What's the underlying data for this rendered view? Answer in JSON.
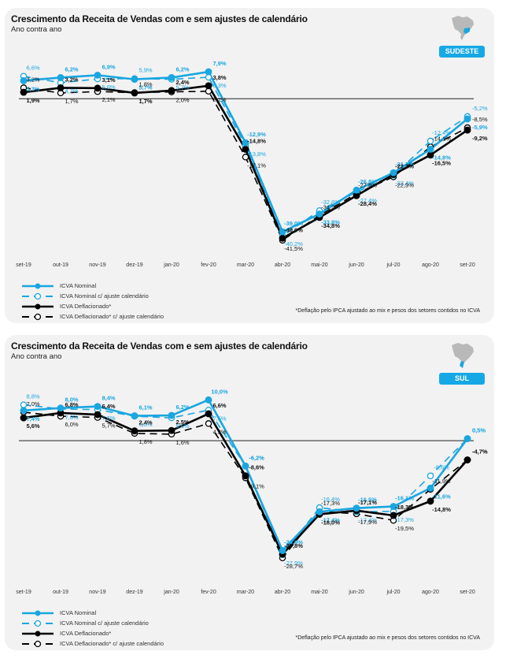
{
  "legend": {
    "items": [
      {
        "label": "ICVA Nominal",
        "color": "#1aa6e0",
        "style": "solid",
        "marker": "filled"
      },
      {
        "label": "ICVA Nominal c/ ajuste calendário",
        "color": "#1aa6e0",
        "style": "dashed",
        "marker": "open"
      },
      {
        "label": "ICVA Deflacionado*",
        "color": "#000000",
        "style": "solid",
        "marker": "filled"
      },
      {
        "label": "ICVA Deflacionado* c/ ajuste calendário",
        "color": "#000000",
        "style": "dashed",
        "marker": "open"
      }
    ]
  },
  "footnote": "*Deflação pelo IPCA ajustado ao mix e pesos dos setores contidos no ICVA",
  "colors": {
    "blue": "#1aa6e0",
    "black": "#000000",
    "badge": "#16a8e6",
    "panel": "#f2f2f2",
    "map_gray": "#b9b9b9"
  },
  "chart_data": [
    {
      "type": "line",
      "title": "Crescimento da Receita de Vendas com e sem ajustes de calendário",
      "subtitle": "Ano contra ano",
      "region": "SUDESTE",
      "icon": "brazil-map-icon",
      "xlabel": "",
      "ylabel": "",
      "ylim": [
        -45,
        10
      ],
      "zero_line": true,
      "grid": false,
      "legend_position": "bottom-left",
      "categories": [
        "set-19",
        "out-19",
        "nov-19",
        "dez-19",
        "jan-20",
        "fev-20",
        "mar-20",
        "abr-20",
        "mai-20",
        "jun-20",
        "jul-20",
        "ago-20",
        "set-20"
      ],
      "series": [
        {
          "name": "ICVA Nominal",
          "values": [
            5.3,
            6.2,
            6.9,
            5.7,
            6.2,
            7.9,
            -12.9,
            -39.0,
            -33.8,
            -26.8,
            -21.7,
            -14.8,
            -5.9
          ],
          "labels": [
            "5,3%",
            "6,2%",
            "6,9%",
            "5,7%",
            "6,2%",
            "7,9%",
            "-12,9%",
            "-39,0%",
            "-33,8%",
            "-26,8%",
            "-21,7%",
            "-14,8%",
            "-5,9%"
          ]
        },
        {
          "name": "ICVA Nominal c/ ajuste calendário",
          "values": [
            6.6,
            4.7,
            5.8,
            5.9,
            5.7,
            6.3,
            -13.8,
            -40.2,
            -32.8,
            -27.4,
            -22.4,
            -12.4,
            -5.2
          ],
          "labels": [
            "6,6%",
            "4,7%",
            "5,8%",
            "5,9%",
            "5,7%",
            "6,3%",
            "-13,8%",
            "-40,2%",
            "-32,8%",
            "-27,4%",
            "-22,4%",
            "-12,4%",
            "-5,2%"
          ]
        },
        {
          "name": "ICVA Deflacionado*",
          "values": [
            1.9,
            3.2,
            3.1,
            1.7,
            2.4,
            3.8,
            -14.8,
            -40.9,
            -34.8,
            -28.4,
            -22.2,
            -16.5,
            -9.2
          ],
          "labels": [
            "1,9%",
            "3,2%",
            "3,1%",
            "1,7%",
            "2,4%",
            "3,8%",
            "-14,8%",
            "-40,9%",
            "-34,8%",
            "-28,4%",
            "-22,2%",
            "-16,5%",
            "-9,2%"
          ]
        },
        {
          "name": "ICVA Deflacionado* c/ ajuste calendário",
          "values": [
            3.2,
            1.7,
            2.1,
            1.8,
            2.0,
            2.2,
            -17.1,
            -41.5,
            -34.2,
            -27.8,
            -22.9,
            -14.1,
            -8.5
          ],
          "labels": [
            "3,2%",
            "1,7%",
            "2,1%",
            "1,8%",
            "2,0%",
            "2,2%",
            "-17,1%",
            "-41,5%",
            "-34,2%",
            "-27,8%",
            "-22,9%",
            "-14,1%",
            "-8,5%"
          ]
        }
      ]
    },
    {
      "type": "line",
      "title": "Crescimento da Receita de Vendas com e sem ajustes de calendário",
      "subtitle": "Ano contra ano",
      "region": "SUL",
      "icon": "brazil-map-icon",
      "xlabel": "",
      "ylabel": "",
      "ylim": [
        -32,
        12
      ],
      "zero_line": true,
      "grid": false,
      "legend_position": "bottom-left",
      "categories": [
        "set-19",
        "out-19",
        "nov-19",
        "dez-19",
        "jan-20",
        "fev-20",
        "mar-20",
        "abr-20",
        "mai-20",
        "jun-20",
        "jul-20",
        "ago-20",
        "set-20"
      ],
      "series": [
        {
          "name": "ICVA Nominal",
          "values": [
            7.4,
            8.0,
            8.4,
            6.1,
            6.2,
            10.0,
            -6.2,
            -26.9,
            -17.4,
            -16.5,
            -16.1,
            -11.6,
            0.5
          ],
          "labels": [
            "7,4%",
            "8,0%",
            "8,4%",
            "6,1%",
            "6,2%",
            "10,0%",
            "-6,2%",
            "-26,9%",
            "-17,4%",
            "-16,5%",
            "-16,1%",
            "-11,6%",
            "0,5%"
          ]
        },
        {
          "name": "ICVA Nominal c/ ajuste calendário",
          "values": [
            8.8,
            7.8,
            7.6,
            6.0,
            5.6,
            7.5,
            -6.2,
            -27.9,
            -16.4,
            -17.4,
            -17.3,
            -8.6,
            0.5
          ],
          "labels": [
            "8,8%",
            "7,8%",
            "7,6%",
            "6,0%",
            "5,6%",
            "7,5%",
            "-6,2%",
            "-27,9%",
            "-16,4%",
            "-17,4%",
            "-17,3%",
            "-8,6%",
            "0,5%"
          ]
        },
        {
          "name": "ICVA Deflacionado*",
          "values": [
            5.6,
            6.8,
            6.4,
            2.4,
            2.5,
            6.6,
            -8.6,
            -27.8,
            -18.0,
            -17.1,
            -18.3,
            -14.8,
            -4.7
          ],
          "labels": [
            "5,6%",
            "6,8%",
            "6,4%",
            "2,4%",
            "2,5%",
            "6,6%",
            "-8,6%",
            "-27,8%",
            "-18,0%",
            "-17,1%",
            "-18,3%",
            "-14,8%",
            "-4,7%"
          ]
        },
        {
          "name": "ICVA Deflacionado* c/ ajuste calendário",
          "values": [
            7.0,
            6.0,
            5.7,
            1.8,
            1.6,
            4.2,
            -9.1,
            -28.7,
            -17.3,
            -17.9,
            -19.5,
            -11.9,
            -4.7
          ],
          "labels": [
            "7,0%",
            "6,0%",
            "5,7%",
            "1,8%",
            "1,6%",
            "4,2%",
            "-9,1%",
            "-28,7%",
            "-17,3%",
            "-17,9%",
            "-19,5%",
            "-11,9%",
            "-4,7%"
          ]
        }
      ]
    }
  ]
}
